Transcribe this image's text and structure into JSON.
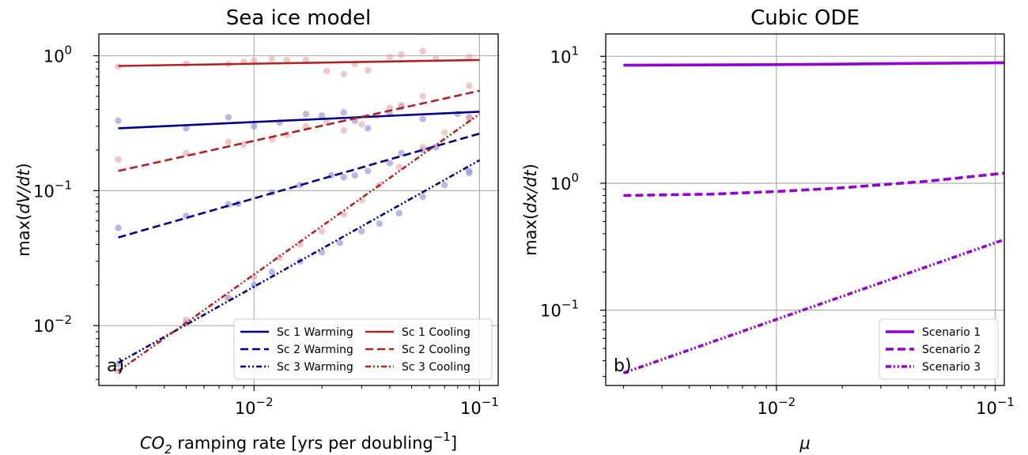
{
  "chart_data": [
    {
      "type": "line",
      "panel_label": "a)",
      "title": "Sea ice model",
      "xlabel_parts": {
        "pre": "CO",
        "sub": "2",
        "mid": " ramping rate [yrs per doubling",
        "sup": "−1",
        "post": "]"
      },
      "ylabel_parts": {
        "pre": "max(",
        "italic": "dV/dt",
        "post": ")"
      },
      "xscale": "log",
      "yscale": "log",
      "xlim": [
        0.00205,
        0.121
      ],
      "ylim": [
        0.0036,
        1.45
      ],
      "xticks": [
        {
          "value": 0.01,
          "base": "10",
          "exp": "−2"
        },
        {
          "value": 0.1,
          "base": "10",
          "exp": "−1"
        }
      ],
      "yticks": [
        {
          "value": 0.01,
          "base": "10",
          "exp": "−2"
        },
        {
          "value": 0.1,
          "base": "10",
          "exp": "−1"
        },
        {
          "value": 1,
          "base": "10",
          "exp": "0"
        }
      ],
      "grid": true,
      "legend": {
        "position": "lower-right",
        "columns": 2
      },
      "series": [
        {
          "name": "Sc 1 Warming",
          "color": "#00008b",
          "dash": "solid",
          "x": [
            0.0025,
            0.1
          ],
          "y": [
            0.29,
            0.385
          ]
        },
        {
          "name": "Sc 2 Warming",
          "color": "#00008b",
          "dash": "dashed",
          "x": [
            0.0025,
            0.1
          ],
          "y": [
            0.045,
            0.265
          ]
        },
        {
          "name": "Sc 3 Warming",
          "color": "#00008b",
          "dash": "dashdotdot",
          "x": [
            0.0025,
            0.1
          ],
          "y": [
            0.0053,
            0.168
          ]
        },
        {
          "name": "Sc 1 Cooling",
          "color": "#b22222",
          "dash": "solid",
          "x": [
            0.0025,
            0.1
          ],
          "y": [
            0.84,
            0.93
          ]
        },
        {
          "name": "Sc 2 Cooling",
          "color": "#b22222",
          "dash": "dashed",
          "x": [
            0.0025,
            0.1
          ],
          "y": [
            0.14,
            0.55
          ]
        },
        {
          "name": "Sc 3 Cooling",
          "color": "#b22222",
          "dash": "dashdotdot",
          "x": [
            0.0025,
            0.1
          ],
          "y": [
            0.0046,
            0.37
          ]
        }
      ],
      "scatter": [
        {
          "color": "#8b8bd6",
          "points": [
            [
              0.0025,
              0.33
            ],
            [
              0.005,
              0.29
            ],
            [
              0.0077,
              0.35
            ],
            [
              0.01,
              0.3
            ],
            [
              0.013,
              0.32
            ],
            [
              0.017,
              0.37
            ],
            [
              0.02,
              0.36
            ],
            [
              0.025,
              0.38
            ],
            [
              0.028,
              0.33
            ],
            [
              0.032,
              0.29
            ],
            [
              0.04,
              0.37
            ],
            [
              0.045,
              0.42
            ],
            [
              0.056,
              0.34
            ],
            [
              0.08,
              0.37
            ],
            [
              0.09,
              0.35
            ],
            [
              0.0025,
              0.053
            ],
            [
              0.005,
              0.065
            ],
            [
              0.0077,
              0.079
            ],
            [
              0.0085,
              0.08
            ],
            [
              0.012,
              0.097
            ],
            [
              0.016,
              0.11
            ],
            [
              0.022,
              0.13
            ],
            [
              0.025,
              0.126
            ],
            [
              0.028,
              0.13
            ],
            [
              0.032,
              0.14
            ],
            [
              0.04,
              0.16
            ],
            [
              0.045,
              0.19
            ],
            [
              0.056,
              0.2
            ],
            [
              0.064,
              0.21
            ],
            [
              0.09,
              0.135
            ],
            [
              0.0025,
              0.0052
            ],
            [
              0.005,
              0.0105
            ],
            [
              0.0077,
              0.016
            ],
            [
              0.01,
              0.02
            ],
            [
              0.012,
              0.025
            ],
            [
              0.016,
              0.03
            ],
            [
              0.02,
              0.035
            ],
            [
              0.024,
              0.041
            ],
            [
              0.03,
              0.05
            ],
            [
              0.036,
              0.057
            ],
            [
              0.044,
              0.068
            ],
            [
              0.056,
              0.09
            ],
            [
              0.07,
              0.11
            ],
            [
              0.09,
              0.14
            ]
          ]
        },
        {
          "color": "#e8a3a3",
          "points": [
            [
              0.0025,
              0.83
            ],
            [
              0.005,
              0.87
            ],
            [
              0.0077,
              0.87
            ],
            [
              0.009,
              0.9
            ],
            [
              0.01,
              0.92
            ],
            [
              0.012,
              0.95
            ],
            [
              0.014,
              0.93
            ],
            [
              0.017,
              0.93
            ],
            [
              0.021,
              0.77
            ],
            [
              0.025,
              0.73
            ],
            [
              0.028,
              0.87
            ],
            [
              0.032,
              0.78
            ],
            [
              0.04,
              0.98
            ],
            [
              0.045,
              1.02
            ],
            [
              0.056,
              1.08
            ],
            [
              0.064,
              0.95
            ],
            [
              0.09,
              0.98
            ],
            [
              0.0025,
              0.17
            ],
            [
              0.005,
              0.19
            ],
            [
              0.0077,
              0.23
            ],
            [
              0.009,
              0.22
            ],
            [
              0.012,
              0.24
            ],
            [
              0.014,
              0.26
            ],
            [
              0.017,
              0.3
            ],
            [
              0.021,
              0.32
            ],
            [
              0.025,
              0.28
            ],
            [
              0.03,
              0.31
            ],
            [
              0.035,
              0.36
            ],
            [
              0.04,
              0.41
            ],
            [
              0.045,
              0.43
            ],
            [
              0.056,
              0.5
            ],
            [
              0.09,
              0.6
            ],
            [
              0.0025,
              0.0046
            ],
            [
              0.005,
              0.011
            ],
            [
              0.0077,
              0.016
            ],
            [
              0.01,
              0.023
            ],
            [
              0.013,
              0.032
            ],
            [
              0.016,
              0.04
            ],
            [
              0.02,
              0.05
            ],
            [
              0.025,
              0.067
            ],
            [
              0.03,
              0.085
            ],
            [
              0.036,
              0.11
            ],
            [
              0.044,
              0.15
            ],
            [
              0.056,
              0.21
            ],
            [
              0.07,
              0.27
            ],
            [
              0.09,
              0.34
            ]
          ]
        }
      ]
    },
    {
      "type": "line",
      "panel_label": "b)",
      "title": "Cubic ODE",
      "xlabel": "μ",
      "ylabel_parts": {
        "pre": "max(",
        "italic": "dx/dt",
        "post": ")"
      },
      "xscale": "log",
      "yscale": "log",
      "xlim": [
        0.00166,
        0.11
      ],
      "ylim": [
        0.0255,
        15
      ],
      "xticks": [
        {
          "value": 0.01,
          "base": "10",
          "exp": "−2"
        },
        {
          "value": 0.1,
          "base": "10",
          "exp": "−1"
        }
      ],
      "yticks": [
        {
          "value": 0.1,
          "base": "10",
          "exp": "−1"
        },
        {
          "value": 1,
          "base": "10",
          "exp": "0"
        },
        {
          "value": 10,
          "base": "10",
          "exp": "1"
        }
      ],
      "grid": true,
      "legend": {
        "position": "lower-right",
        "columns": 1
      },
      "series": [
        {
          "name": "Scenario 1",
          "color": "#9400d3",
          "dash": "solid",
          "x": [
            0.002,
            0.01,
            0.05,
            0.11
          ],
          "y": [
            8.5,
            8.6,
            8.8,
            8.9
          ]
        },
        {
          "name": "Scenario 2",
          "color": "#9400d3",
          "dash": "dashed",
          "x": [
            0.002,
            0.005,
            0.01,
            0.02,
            0.05,
            0.11
          ],
          "y": [
            0.8,
            0.82,
            0.86,
            0.92,
            1.04,
            1.2
          ]
        },
        {
          "name": "Scenario 3",
          "color": "#9400d3",
          "dash": "dashdotdot",
          "x": [
            0.002,
            0.11
          ],
          "y": [
            0.032,
            0.36
          ]
        }
      ]
    }
  ]
}
